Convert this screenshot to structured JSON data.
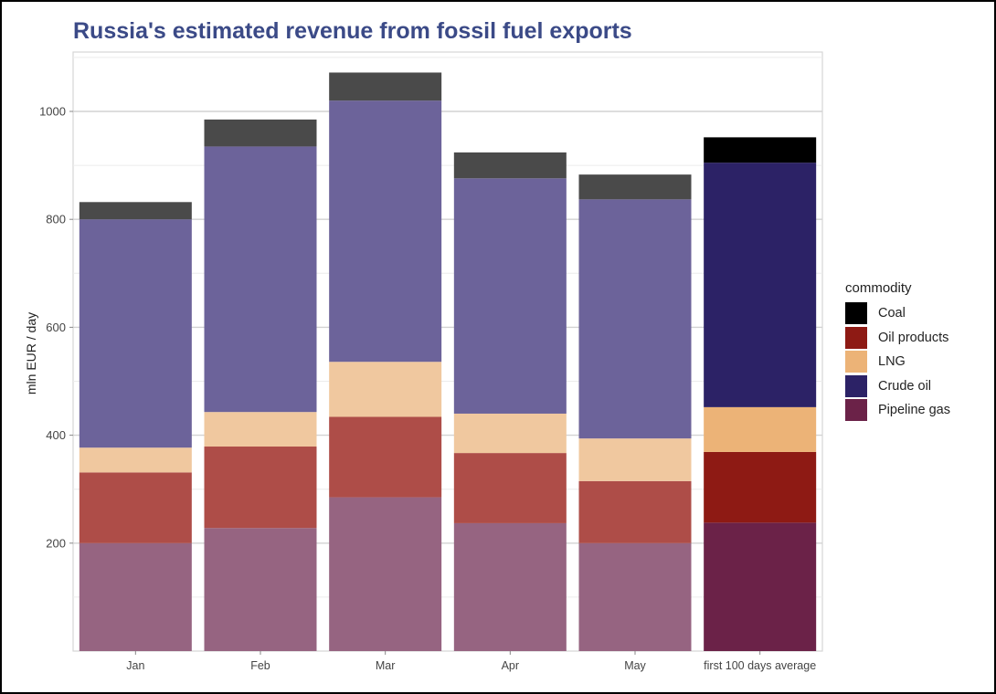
{
  "chart_data": {
    "type": "bar",
    "stacked": true,
    "title": "Russia's estimated revenue from fossil fuel exports",
    "xlabel": "",
    "ylabel": "mln EUR / day",
    "categories": [
      "Jan",
      "Feb",
      "Mar",
      "Apr",
      "May",
      "first 100 days average"
    ],
    "ylim": [
      0,
      1110
    ],
    "yticks": [
      200,
      400,
      600,
      800,
      1000
    ],
    "grid": true,
    "legend_title": "commodity",
    "legend_position": "right",
    "legend_order": [
      "Coal",
      "Oil products",
      "LNG",
      "Crude oil",
      "Pipeline gas"
    ],
    "series": [
      {
        "name": "Pipeline gas",
        "values": [
          200,
          228,
          285,
          237,
          200,
          238
        ],
        "color": "#6b2248",
        "muted_color": "#966481"
      },
      {
        "name": "Oil products",
        "values": [
          131,
          151,
          149,
          130,
          115,
          131
        ],
        "color": "#8e1a14",
        "muted_color": "#ae4d48"
      },
      {
        "name": "LNG",
        "values": [
          46,
          64,
          102,
          73,
          79,
          83
        ],
        "color": "#ecb377",
        "muted_color": "#f0c89f"
      },
      {
        "name": "Crude oil",
        "values": [
          423,
          492,
          484,
          436,
          443,
          453
        ],
        "color": "#2c2266",
        "muted_color": "#6c639a"
      },
      {
        "name": "Coal",
        "values": [
          32,
          50,
          52,
          48,
          46,
          47
        ],
        "color": "#000000",
        "muted_color": "#4a4a4a"
      }
    ],
    "highlight_category": "first 100 days average"
  }
}
